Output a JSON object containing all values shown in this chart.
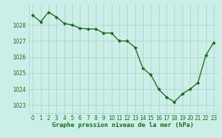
{
  "x": [
    0,
    1,
    2,
    3,
    4,
    5,
    6,
    7,
    8,
    9,
    10,
    11,
    12,
    13,
    14,
    15,
    16,
    17,
    18,
    19,
    20,
    21,
    22,
    23
  ],
  "y": [
    1028.6,
    1028.2,
    1028.8,
    1028.5,
    1028.1,
    1028.0,
    1027.8,
    1027.75,
    1027.75,
    1027.5,
    1027.5,
    1027.0,
    1027.0,
    1026.6,
    1025.3,
    1024.9,
    1024.0,
    1023.5,
    1023.2,
    1023.7,
    1024.0,
    1024.4,
    1026.1,
    1026.9
  ],
  "line_color": "#1a6b1a",
  "marker": "D",
  "markersize": 2.2,
  "linewidth": 1.0,
  "bg_color": "#cceee8",
  "grid_color": "#aad4cc",
  "xlabel": "Graphe pression niveau de la mer (hPa)",
  "xlabel_fontsize": 6.5,
  "ylabel_ticks": [
    1023,
    1024,
    1025,
    1026,
    1027,
    1028
  ],
  "xlim": [
    -0.5,
    23.5
  ],
  "ylim": [
    1022.5,
    1029.3
  ],
  "title_color": "#1a6b1a",
  "tick_fontsize": 5.5,
  "xtick_labels": [
    "0",
    "1",
    "2",
    "3",
    "4",
    "5",
    "6",
    "7",
    "8",
    "9",
    "10",
    "11",
    "12",
    "13",
    "14",
    "15",
    "16",
    "17",
    "18",
    "19",
    "20",
    "21",
    "22",
    "23"
  ]
}
